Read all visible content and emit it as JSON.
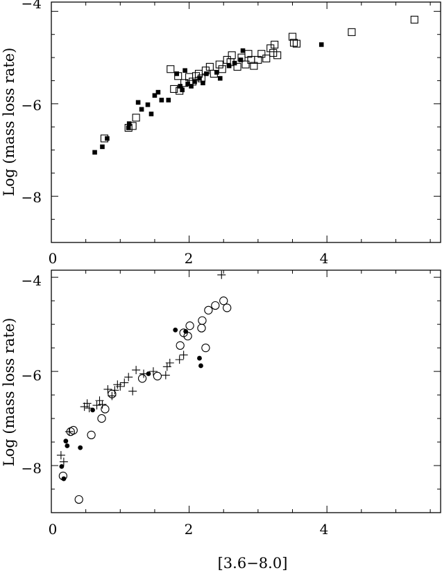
{
  "chart_data": [
    {
      "type": "scatter",
      "title": "",
      "ylabel": "Log (mass loss rate)",
      "xlim": [
        0,
        5.65
      ],
      "ylim": [
        -9.0,
        -3.8
      ],
      "x_ticks": [
        0,
        2,
        4
      ],
      "x_tick_labels": [
        "0",
        "2",
        "4"
      ],
      "y_ticks": [
        -4,
        -6,
        -8
      ],
      "y_tick_labels": [
        "−4",
        "−6",
        "−8"
      ],
      "grid": false,
      "series": [
        {
          "marker": "filled-square",
          "points": [
            [
              0.63,
              -7.05
            ],
            [
              0.74,
              -6.93
            ],
            [
              0.81,
              -6.75
            ],
            [
              1.12,
              -6.52
            ],
            [
              1.13,
              -6.43
            ],
            [
              1.26,
              -5.97
            ],
            [
              1.31,
              -6.12
            ],
            [
              1.4,
              -6.02
            ],
            [
              1.45,
              -6.22
            ],
            [
              1.5,
              -5.82
            ],
            [
              1.55,
              -5.75
            ],
            [
              1.6,
              -5.92
            ],
            [
              1.7,
              -5.92
            ],
            [
              1.82,
              -5.35
            ],
            [
              1.87,
              -5.62
            ],
            [
              1.9,
              -5.7
            ],
            [
              1.94,
              -5.28
            ],
            [
              1.98,
              -5.57
            ],
            [
              2.03,
              -5.62
            ],
            [
              2.08,
              -5.52
            ],
            [
              2.15,
              -5.45
            ],
            [
              2.2,
              -5.55
            ],
            [
              2.25,
              -5.35
            ],
            [
              2.4,
              -5.32
            ],
            [
              2.45,
              -5.45
            ],
            [
              2.58,
              -5.18
            ],
            [
              2.66,
              -5.12
            ],
            [
              2.75,
              -5.05
            ],
            [
              2.78,
              -4.85
            ],
            [
              3.92,
              -4.72
            ]
          ]
        },
        {
          "marker": "open-square",
          "points": [
            [
              0.77,
              -6.75
            ],
            [
              1.12,
              -6.52
            ],
            [
              1.18,
              -6.48
            ],
            [
              1.23,
              -6.3
            ],
            [
              1.73,
              -5.25
            ],
            [
              1.78,
              -5.68
            ],
            [
              1.84,
              -5.4
            ],
            [
              1.86,
              -5.72
            ],
            [
              1.93,
              -5.55
            ],
            [
              2.0,
              -5.42
            ],
            [
              2.05,
              -5.52
            ],
            [
              2.1,
              -5.4
            ],
            [
              2.14,
              -5.35
            ],
            [
              2.18,
              -5.45
            ],
            [
              2.24,
              -5.28
            ],
            [
              2.3,
              -5.2
            ],
            [
              2.36,
              -5.35
            ],
            [
              2.44,
              -5.15
            ],
            [
              2.48,
              -5.25
            ],
            [
              2.55,
              -5.05
            ],
            [
              2.6,
              -5.1
            ],
            [
              2.62,
              -4.95
            ],
            [
              2.7,
              -5.2
            ],
            [
              2.76,
              -5.0
            ],
            [
              2.82,
              -5.15
            ],
            [
              2.86,
              -4.92
            ],
            [
              2.9,
              -5.05
            ],
            [
              2.94,
              -5.18
            ],
            [
              3.0,
              -5.05
            ],
            [
              3.05,
              -4.92
            ],
            [
              3.12,
              -5.02
            ],
            [
              3.18,
              -4.8
            ],
            [
              3.22,
              -4.9
            ],
            [
              3.24,
              -4.72
            ],
            [
              3.28,
              -4.95
            ],
            [
              3.5,
              -4.55
            ],
            [
              3.52,
              -4.68
            ],
            [
              3.56,
              -4.7
            ],
            [
              4.36,
              -4.45
            ],
            [
              5.27,
              -4.18
            ]
          ]
        }
      ]
    },
    {
      "type": "scatter",
      "title": "",
      "xlabel": "[3.6−8.0]",
      "ylabel": "Log (mass loss rate)",
      "xlim": [
        0,
        5.65
      ],
      "ylim": [
        -9.0,
        -3.85
      ],
      "x_ticks": [
        0,
        2,
        4
      ],
      "x_tick_labels": [
        "0",
        "2",
        "4"
      ],
      "y_ticks": [
        -4,
        -6,
        -8
      ],
      "y_tick_labels": [
        "−4",
        "−6",
        "−8"
      ],
      "grid": false,
      "series": [
        {
          "marker": "filled-circle",
          "points": [
            [
              0.15,
              -8.02
            ],
            [
              0.18,
              -8.28
            ],
            [
              0.21,
              -7.48
            ],
            [
              0.23,
              -7.58
            ],
            [
              0.42,
              -7.62
            ],
            [
              0.6,
              -6.82
            ],
            [
              1.41,
              -6.05
            ],
            [
              1.8,
              -5.12
            ],
            [
              1.95,
              -5.15
            ],
            [
              2.15,
              -5.72
            ],
            [
              2.17,
              -5.88
            ]
          ]
        },
        {
          "marker": "open-circle",
          "points": [
            [
              0.17,
              -8.22
            ],
            [
              0.28,
              -7.28
            ],
            [
              0.32,
              -7.25
            ],
            [
              0.4,
              -8.72
            ],
            [
              0.58,
              -7.35
            ],
            [
              0.73,
              -7.0
            ],
            [
              0.78,
              -6.8
            ],
            [
              0.88,
              -6.48
            ],
            [
              1.32,
              -6.15
            ],
            [
              1.54,
              -6.1
            ],
            [
              1.87,
              -5.45
            ],
            [
              1.92,
              -5.18
            ],
            [
              1.98,
              -5.25
            ],
            [
              2.01,
              -5.03
            ],
            [
              2.18,
              -5.08
            ],
            [
              2.19,
              -4.92
            ],
            [
              2.24,
              -5.5
            ],
            [
              2.28,
              -4.7
            ],
            [
              2.38,
              -4.6
            ],
            [
              2.5,
              -4.5
            ],
            [
              2.55,
              -4.65
            ]
          ]
        },
        {
          "marker": "plus",
          "points": [
            [
              0.14,
              -7.78
            ],
            [
              0.18,
              -7.92
            ],
            [
              0.26,
              -7.28
            ],
            [
              0.48,
              -6.75
            ],
            [
              0.52,
              -6.68
            ],
            [
              0.55,
              -6.78
            ],
            [
              0.66,
              -6.72
            ],
            [
              0.7,
              -6.62
            ],
            [
              0.74,
              -6.7
            ],
            [
              0.82,
              -6.38
            ],
            [
              0.88,
              -6.52
            ],
            [
              0.92,
              -6.4
            ],
            [
              0.96,
              -6.28
            ],
            [
              1.0,
              -6.32
            ],
            [
              1.06,
              -6.24
            ],
            [
              1.12,
              -6.12
            ],
            [
              1.18,
              -6.42
            ],
            [
              1.23,
              -5.97
            ],
            [
              1.34,
              -6.05
            ],
            [
              1.48,
              -6.0
            ],
            [
              1.66,
              -6.08
            ],
            [
              1.68,
              -5.9
            ],
            [
              1.72,
              -5.82
            ],
            [
              1.86,
              -5.75
            ],
            [
              1.92,
              -5.65
            ],
            [
              2.47,
              -3.95
            ]
          ]
        }
      ]
    }
  ]
}
